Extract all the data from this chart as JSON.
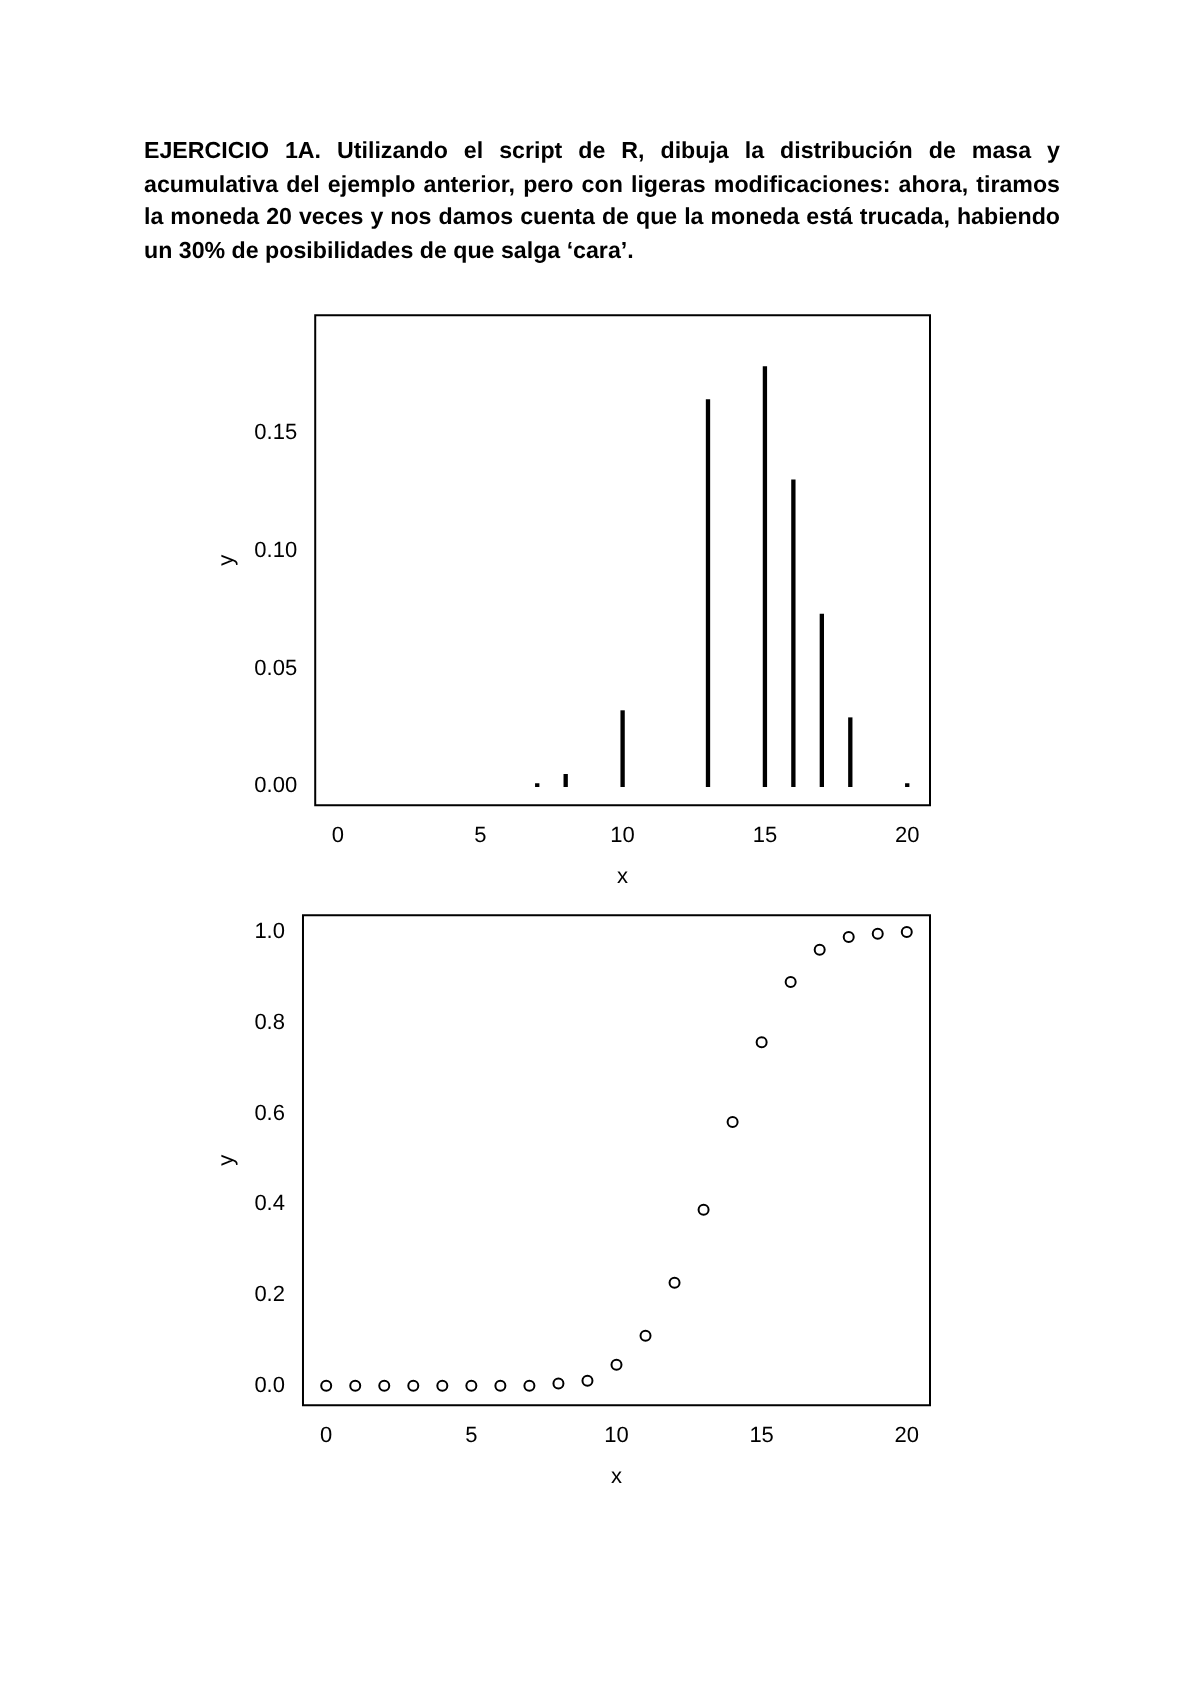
{
  "chart_data": [
    {
      "type": "bar",
      "title": "EJERCICIO 1A. Utilizando el script de R, dibuja la distribución de masa y acumulativa del ejemplo anterior, pero con ligeras modificaciones: ahora, tiramos la moneda 20 veces y nos damos cuenta de que la moneda está trucada, habiendo un 30% de posibilidades de que salga ‘cara’.",
      "xlabel": "x",
      "ylabel": "y",
      "x": [
        7,
        8,
        10,
        13,
        15,
        16,
        17,
        18,
        20
      ],
      "values": [
        0.001,
        0.005,
        0.032,
        0.164,
        0.178,
        0.13,
        0.073,
        0.029,
        0.001
      ],
      "color": "#000000",
      "xlim": [
        -0.8,
        20.8
      ],
      "xticks": [
        0,
        5,
        10,
        15,
        20
      ],
      "ylim": [
        -0.008,
        0.2
      ],
      "yticks": [
        {
          "value": 0,
          "label": "0.00"
        },
        0.05,
        {
          "value": 0.1,
          "label": "0.10"
        },
        0.15
      ],
      "grid": false,
      "legend": false
    },
    {
      "type": "scatter",
      "xlabel": "x",
      "ylabel": "y",
      "x": [
        0,
        1,
        2,
        3,
        4,
        5,
        6,
        7,
        8,
        9,
        10,
        11,
        12,
        13,
        14,
        15,
        16,
        17,
        18,
        19,
        20
      ],
      "values": [
        0,
        0,
        0,
        0,
        0,
        0,
        0,
        0,
        0.005,
        0.011,
        0.046,
        0.11,
        0.227,
        0.388,
        0.581,
        0.757,
        0.89,
        0.961,
        0.989,
        0.996,
        1.0
      ],
      "color": "#000000",
      "marker": "circle",
      "xlim": [
        -0.8,
        20.8
      ],
      "xticks": [
        0,
        5,
        10,
        15,
        20
      ],
      "ylim": [
        -0.043,
        1.037
      ],
      "yticks": [
        {
          "value": 0,
          "label": "0.0"
        },
        0.2,
        0.4,
        0.6,
        0.8,
        {
          "value": 1,
          "label": "1.0"
        }
      ],
      "grid": false,
      "legend": false
    }
  ]
}
